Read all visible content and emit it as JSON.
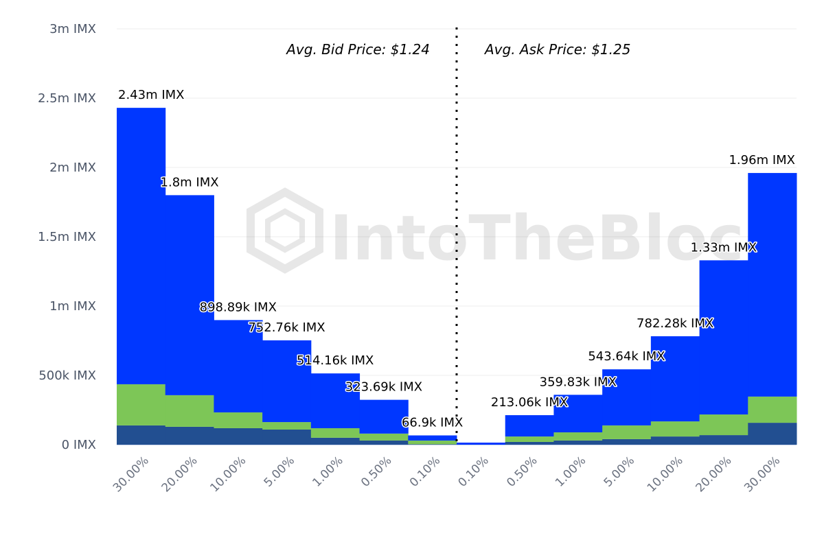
{
  "chart_data": {
    "type": "bar",
    "stacked": true,
    "title": "",
    "xlabel": "",
    "ylabel": "",
    "ylim": [
      0,
      3000000
    ],
    "grid": true,
    "categories": [
      "30.00%",
      "20.00%",
      "10.00%",
      "5.00%",
      "1.00%",
      "0.50%",
      "0.10%",
      "0.10%",
      "0.50%",
      "1.00%",
      "5.00%",
      "10.00%",
      "20.00%",
      "30.00%"
    ],
    "y_ticks": [
      {
        "value": 0,
        "label": "0 IMX"
      },
      {
        "value": 500000,
        "label": "500k IMX"
      },
      {
        "value": 1000000,
        "label": "1m IMX"
      },
      {
        "value": 1500000,
        "label": "1.5m IMX"
      },
      {
        "value": 2000000,
        "label": "2m IMX"
      },
      {
        "value": 2500000,
        "label": "2.5m IMX"
      },
      {
        "value": 3000000,
        "label": "3m IMX"
      }
    ],
    "series": [
      {
        "color": "#224F91",
        "values": [
          139000,
          129000,
          119000,
          109000,
          50000,
          30000,
          3000,
          0,
          20000,
          30000,
          40000,
          59000,
          69000,
          158000
        ]
      },
      {
        "color": "#7DC657",
        "values": [
          297000,
          228000,
          114000,
          54000,
          69000,
          50000,
          27000,
          0,
          39000,
          59000,
          99000,
          109000,
          149000,
          189000
        ]
      },
      {
        "color": "#0037FF",
        "values": [
          1994000,
          1443000,
          665890,
          589760,
          395160,
          243690,
          36900,
          15000,
          154060,
          270830,
          404640,
          614280,
          1112000,
          1613000
        ]
      }
    ],
    "totals": [
      2430000,
      1800000,
      898890,
      752760,
      514160,
      323690,
      66900,
      15000,
      213060,
      359830,
      543640,
      782280,
      1330000,
      1960000
    ],
    "data_labels": [
      "2.43m IMX",
      "1.8m IMX",
      "898.89k IMX",
      "752.76k IMX",
      "514.16k IMX",
      "323.69k IMX",
      "66.9k IMX",
      "",
      "213.06k IMX",
      "359.83k IMX",
      "543.64k IMX",
      "782.28k IMX",
      "1.33m IMX",
      "1.96m IMX"
    ],
    "annotations": {
      "bid": "Avg. Bid Price: $1.24",
      "ask": "Avg. Ask Price: $1.25"
    },
    "watermark": "IntoTheBlock"
  }
}
